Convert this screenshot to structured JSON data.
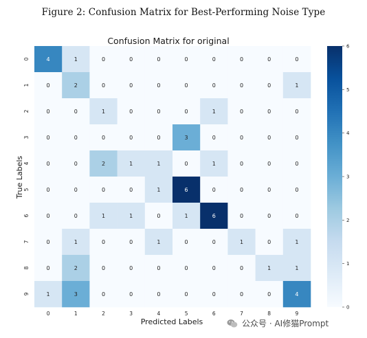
{
  "caption": "Figure 2: Confusion Matrix for Best-Performing Noise Type",
  "watermark": {
    "text": "公众号 · AI修猫Prompt",
    "icon": "wechat-icon"
  },
  "colors": {
    "cmap_low": "#f7fbff",
    "cmap_mid": "#6baed6",
    "cmap_high": "#08306b",
    "text_dark": "#222222",
    "text_light": "#ffffff"
  },
  "chart_data": {
    "type": "heatmap",
    "title": "Confusion Matrix for original",
    "xlabel": "Predicted Labels",
    "ylabel": "True Labels",
    "x_categories": [
      "0",
      "1",
      "2",
      "3",
      "4",
      "5",
      "6",
      "7",
      "8",
      "9"
    ],
    "y_categories": [
      "0",
      "1",
      "2",
      "3",
      "4",
      "5",
      "6",
      "7",
      "8",
      "9"
    ],
    "matrix": [
      [
        4,
        1,
        0,
        0,
        0,
        0,
        0,
        0,
        0,
        0
      ],
      [
        0,
        2,
        0,
        0,
        0,
        0,
        0,
        0,
        0,
        1
      ],
      [
        0,
        0,
        1,
        0,
        0,
        0,
        1,
        0,
        0,
        0
      ],
      [
        0,
        0,
        0,
        0,
        0,
        3,
        0,
        0,
        0,
        0
      ],
      [
        0,
        0,
        2,
        1,
        1,
        0,
        1,
        0,
        0,
        0
      ],
      [
        0,
        0,
        0,
        0,
        1,
        6,
        0,
        0,
        0,
        0
      ],
      [
        0,
        0,
        1,
        1,
        0,
        1,
        6,
        0,
        0,
        0
      ],
      [
        0,
        1,
        0,
        0,
        1,
        0,
        0,
        1,
        0,
        1
      ],
      [
        0,
        2,
        0,
        0,
        0,
        0,
        0,
        0,
        1,
        1
      ],
      [
        1,
        3,
        0,
        0,
        0,
        0,
        0,
        0,
        0,
        4
      ]
    ],
    "colorbar": {
      "min": 0,
      "max": 6,
      "ticks": [
        0,
        1,
        2,
        3,
        4,
        5,
        6
      ]
    }
  }
}
